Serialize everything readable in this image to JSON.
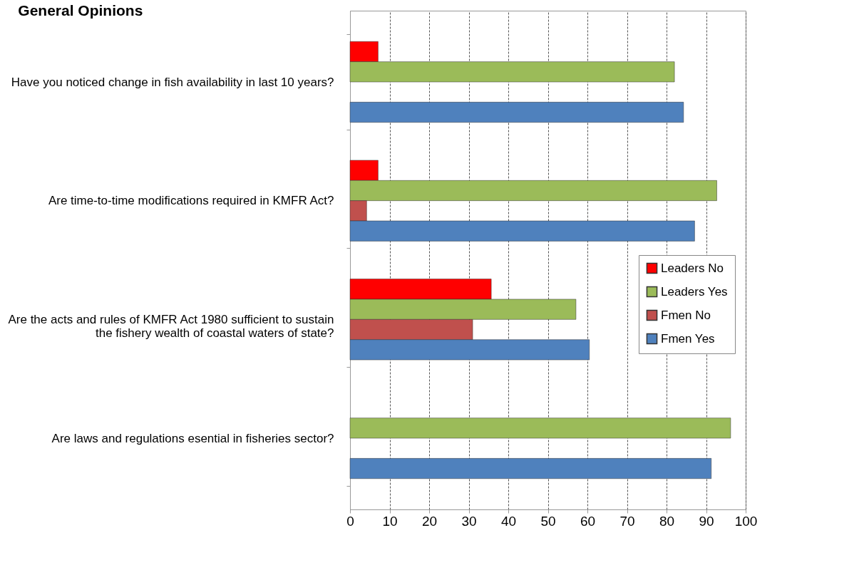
{
  "chart_data": {
    "type": "bar",
    "orientation": "horizontal",
    "title": "General Opinions",
    "categories": [
      "Have you noticed change in fish availability in last 10 years?",
      "Are time-to-time modifications  required in KMFR Act?",
      "Are the acts and rules of KMFR Act 1980  sufficient to sustain the fishery wealth of coastal waters of state?",
      "Are laws and regulations esential in fisheries sector?"
    ],
    "series": [
      {
        "name": "Leaders No",
        "color": "#ff0000",
        "values": [
          7.1,
          7.1,
          35.7,
          null
        ]
      },
      {
        "name": "Leaders Yes",
        "color": "#9bbb59",
        "values": [
          82.0,
          92.7,
          57.1,
          96.2
        ]
      },
      {
        "name": "Fmen No",
        "color": "#c0504d",
        "values": [
          null,
          4.2,
          31.0,
          null
        ]
      },
      {
        "name": "Fmen Yes",
        "color": "#4f81bd",
        "values": [
          84.3,
          87.1,
          60.5,
          91.3
        ]
      }
    ],
    "xlim": [
      0,
      100
    ],
    "xticks": [
      0,
      10,
      20,
      30,
      40,
      50,
      60,
      70,
      80,
      90,
      100
    ],
    "grid": "x",
    "legend": "right"
  }
}
